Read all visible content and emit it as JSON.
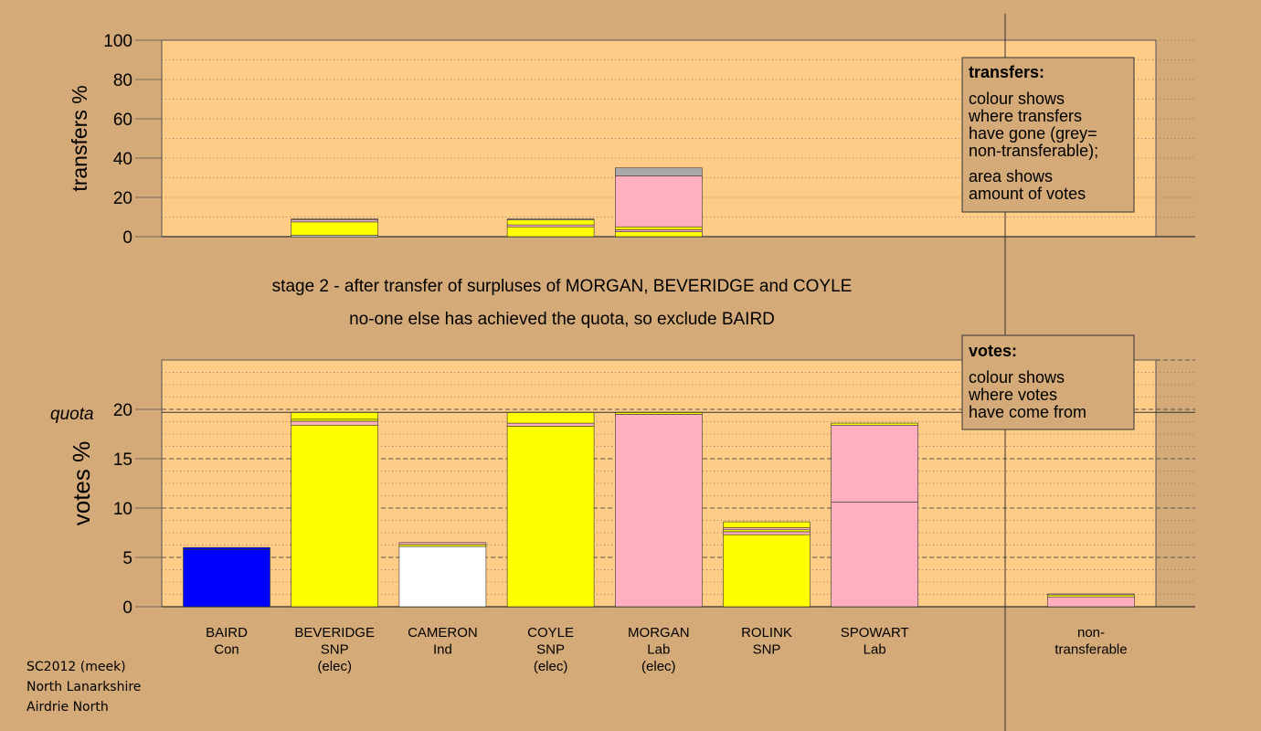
{
  "chart_data": [
    {
      "type": "bar",
      "stacked": true,
      "ylabel": "transfers %",
      "ylim": [
        0,
        100
      ],
      "yticks": [
        0,
        20,
        40,
        60,
        80,
        100
      ],
      "grid": true,
      "categories": [
        "BAIRD",
        "BEVERIDGE",
        "CAMERON",
        "COYLE",
        "MORGAN",
        "ROLINK",
        "SPOWART"
      ],
      "bars": [
        {
          "category": "BEVERIDGE",
          "segments": [
            {
              "color": "#ffffff",
              "from": 0,
              "to": 0.7
            },
            {
              "color": "#ffff00",
              "from": 0.7,
              "to": 7.5
            },
            {
              "color": "#ffb0c0",
              "from": 7.5,
              "to": 8.5
            },
            {
              "color": "#aaaaaa",
              "from": 8.5,
              "to": 9
            }
          ]
        },
        {
          "category": "COYLE",
          "segments": [
            {
              "color": "#ffff00",
              "from": 0,
              "to": 5
            },
            {
              "color": "#ffb0c0",
              "from": 5,
              "to": 6
            },
            {
              "color": "#ffff00",
              "from": 6,
              "to": 8.5
            },
            {
              "color": "#aaaaaa",
              "from": 8.5,
              "to": 9
            }
          ]
        },
        {
          "category": "MORGAN",
          "segments": [
            {
              "color": "#ffff00",
              "from": 0,
              "to": 2.5
            },
            {
              "color": "#ffb0c0",
              "from": 2.5,
              "to": 3.5
            },
            {
              "color": "#ffff00",
              "from": 3.5,
              "to": 5
            },
            {
              "color": "#ffb0c0",
              "from": 5,
              "to": 31
            },
            {
              "color": "#aaaaaa",
              "from": 31,
              "to": 35
            }
          ]
        }
      ],
      "legend_box": {
        "title": "transfers:",
        "lines_a": [
          "colour shows",
          "where transfers",
          "have gone (grey=",
          "non-transferable);"
        ],
        "lines_b": [
          "area shows",
          "amount of votes"
        ]
      }
    },
    {
      "type": "bar",
      "stacked": true,
      "ylabel": "votes %",
      "ylim": [
        0,
        25
      ],
      "yticks": [
        0,
        5,
        10,
        15,
        20
      ],
      "quota": 19.7,
      "quota_label": "quota",
      "grid": true,
      "categories": [
        "BAIRD",
        "BEVERIDGE",
        "CAMERON",
        "COYLE",
        "MORGAN",
        "ROLINK",
        "SPOWART"
      ],
      "bars": [
        {
          "category": "BAIRD",
          "segments": [
            {
              "color": "#0000ff",
              "from": 0,
              "to": 5.8
            },
            {
              "color": "#0000ff",
              "from": 5.8,
              "to": 6.0
            }
          ]
        },
        {
          "category": "BEVERIDGE",
          "segments": [
            {
              "color": "#ffff00",
              "from": 0,
              "to": 18.4
            },
            {
              "color": "#ffb0c0",
              "from": 18.4,
              "to": 18.8
            },
            {
              "color": "#ffff00",
              "from": 18.8,
              "to": 19.0
            },
            {
              "color": "#ffff00",
              "from": 19.0,
              "to": 19.7
            }
          ]
        },
        {
          "category": "CAMERON",
          "segments": [
            {
              "color": "#ffffff",
              "from": 0,
              "to": 6.1
            },
            {
              "color": "#ffff00",
              "from": 6.1,
              "to": 6.3
            },
            {
              "color": "#ffb0c0",
              "from": 6.3,
              "to": 6.5
            }
          ]
        },
        {
          "category": "COYLE",
          "segments": [
            {
              "color": "#ffff00",
              "from": 0,
              "to": 18.3
            },
            {
              "color": "#ffb0c0",
              "from": 18.3,
              "to": 18.6
            },
            {
              "color": "#ffff00",
              "from": 18.6,
              "to": 19.7
            }
          ]
        },
        {
          "category": "MORGAN",
          "segments": [
            {
              "color": "#ffb0c0",
              "from": 0,
              "to": 19.5
            },
            {
              "color": "#ffff00",
              "from": 19.5,
              "to": 19.7
            }
          ]
        },
        {
          "category": "ROLINK",
          "segments": [
            {
              "color": "#ffff00",
              "from": 0,
              "to": 7.3
            },
            {
              "color": "#ffb0c0",
              "from": 7.3,
              "to": 7.6
            },
            {
              "color": "#ffff00",
              "from": 7.6,
              "to": 7.8
            },
            {
              "color": "#ffb0c0",
              "from": 7.8,
              "to": 8.0
            },
            {
              "color": "#ffff00",
              "from": 8.0,
              "to": 8.6
            }
          ]
        },
        {
          "category": "SPOWART",
          "segments": [
            {
              "color": "#ffb0c0",
              "from": 0,
              "to": 10.6
            },
            {
              "color": "#ffb0c0",
              "from": 10.6,
              "to": 18.4
            },
            {
              "color": "#ffff00",
              "from": 18.4,
              "to": 18.6
            }
          ]
        },
        {
          "category": "non-transferable",
          "segments": [
            {
              "color": "#ffb0c0",
              "from": 0,
              "to": 1.0
            },
            {
              "color": "#ffff00",
              "from": 1.0,
              "to": 1.2
            },
            {
              "color": "#ffb0c0",
              "from": 1.2,
              "to": 1.3
            }
          ]
        }
      ],
      "legend_box": {
        "title": "votes:",
        "lines_a": [
          "colour shows",
          "where votes",
          "have come from"
        ]
      }
    }
  ],
  "stage_text": {
    "line1": "stage 2 - after transfer of surpluses of MORGAN, BEVERIDGE and COYLE",
    "line2": "no-one else has achieved the quota, so exclude BAIRD"
  },
  "candidates": [
    {
      "name": "BAIRD",
      "party": "Con",
      "note": ""
    },
    {
      "name": "BEVERIDGE",
      "party": "SNP",
      "note": "(elec)"
    },
    {
      "name": "CAMERON",
      "party": "Ind",
      "note": ""
    },
    {
      "name": "COYLE",
      "party": "SNP",
      "note": "(elec)"
    },
    {
      "name": "MORGAN",
      "party": "Lab",
      "note": "(elec)"
    },
    {
      "name": "ROLINK",
      "party": "SNP",
      "note": ""
    },
    {
      "name": "SPOWART",
      "party": "Lab",
      "note": ""
    }
  ],
  "nontransferable_label": [
    "non-",
    "transferable"
  ],
  "footer": {
    "line1": "SC2012 (meek)",
    "line2": "North Lanarkshire",
    "line3": "Airdrie North"
  },
  "colors": {
    "background": "#d4aa78",
    "plot_area": "#ffcc88",
    "con": "#0000ff",
    "snp": "#ffff00",
    "lab": "#ffb0c0",
    "ind": "#ffffff",
    "nontransferable": "#aaaaaa"
  }
}
